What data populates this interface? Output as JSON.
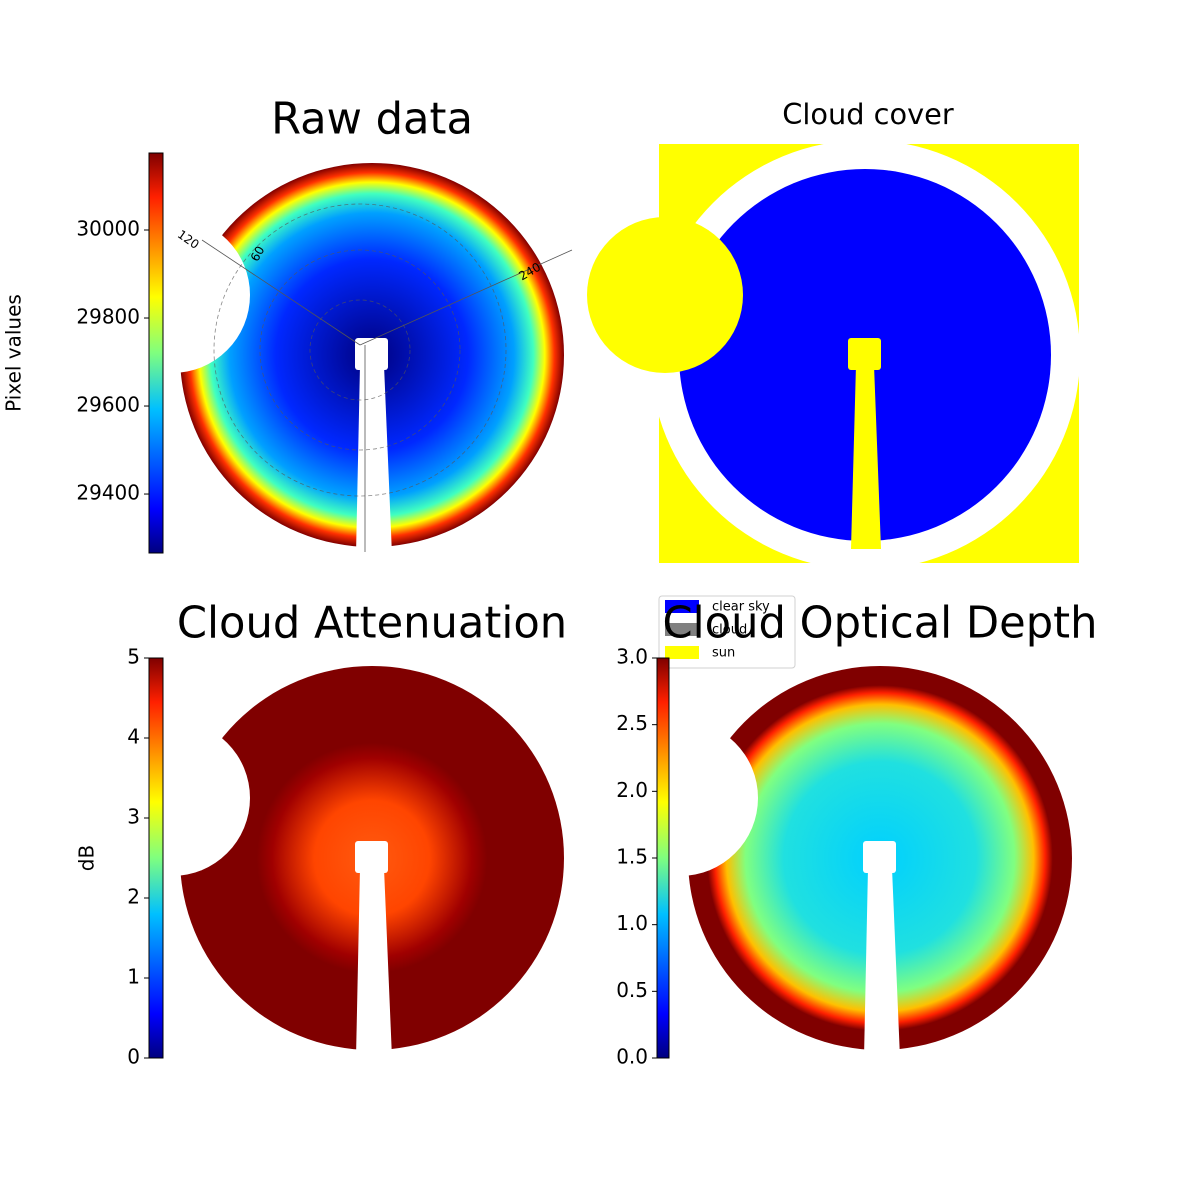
{
  "chart_data": [
    {
      "type": "image",
      "title": "Raw data",
      "ylabel": "Pixel values",
      "colormap": "jet",
      "ylim": [
        29266,
        30175
      ],
      "yticks": [
        29400,
        29600,
        29800,
        30000
      ],
      "annotations": [
        "120",
        "60",
        "240"
      ]
    },
    {
      "type": "categorical-image",
      "title": "Cloud cover",
      "series": [
        {
          "name": "clear sky",
          "color": "#0000ff"
        },
        {
          "name": "cloud",
          "color": "#808080"
        },
        {
          "name": "sun",
          "color": "#ffff00"
        }
      ]
    },
    {
      "type": "image",
      "title": "Cloud Attenuation",
      "ylabel": "dB",
      "colormap": "jet",
      "ylim": [
        0,
        5
      ],
      "yticks": [
        0,
        1,
        2,
        3,
        4,
        5
      ]
    },
    {
      "type": "image",
      "title": "Cloud Optical Depth",
      "colormap": "jet",
      "ylim": [
        0,
        3
      ],
      "yticks": [
        {
          "value": 0,
          "label": "0.0"
        },
        0.5,
        {
          "value": 1,
          "label": "1.0"
        },
        1.5,
        {
          "value": 2,
          "label": "2.0"
        },
        2.5,
        {
          "value": 3,
          "label": "3.0"
        }
      ]
    }
  ]
}
